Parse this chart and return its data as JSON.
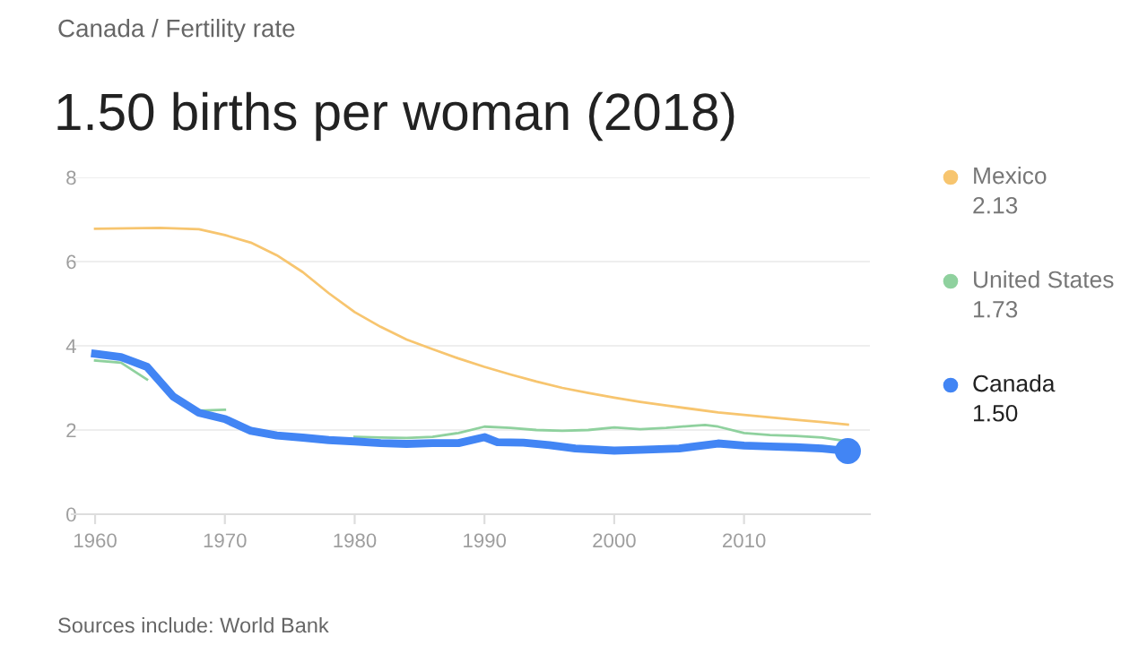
{
  "chart_data": {
    "type": "line",
    "subtitle": "Canada / Fertility rate",
    "title": "1.50 births per woman (2018)",
    "annotations": [
      "Sources include: World Bank"
    ],
    "xlim": [
      1958.2,
      2019.7
    ],
    "xticks": [
      1960,
      1970,
      1980,
      1990,
      2000,
      2010
    ],
    "ylim": [
      0,
      8
    ],
    "yticks": [
      0,
      2,
      4,
      6,
      8
    ],
    "grid": "y",
    "legend": "right",
    "series": [
      {
        "name": "Mexico\n2.13",
        "color": "#f7c56f",
        "x": [
          1960,
          1965,
          1968,
          1970,
          1972,
          1974,
          1976,
          1978,
          1980,
          1982,
          1984,
          1986,
          1988,
          1990,
          1992,
          1994,
          1996,
          1998,
          2000,
          2002,
          2004,
          2006,
          2008,
          2010,
          2012,
          2014,
          2016,
          2018
        ],
        "values": [
          6.78,
          6.8,
          6.77,
          6.63,
          6.45,
          6.15,
          5.75,
          5.25,
          4.8,
          4.45,
          4.15,
          3.92,
          3.7,
          3.5,
          3.32,
          3.15,
          3.0,
          2.88,
          2.77,
          2.67,
          2.58,
          2.5,
          2.42,
          2.36,
          2.3,
          2.24,
          2.19,
          2.13
        ]
      },
      {
        "name": "United States\n1.73",
        "color": "#8fd19e",
        "x": [
          1960,
          1962,
          1964,
          1966,
          1968,
          1970,
          1972,
          1974,
          1976,
          1978,
          1980,
          1982,
          1984,
          1986,
          1988,
          1990,
          1992,
          1994,
          1996,
          1998,
          2000,
          2002,
          2004,
          2006,
          2007,
          2008,
          2010,
          2012,
          2014,
          2016,
          2018
        ],
        "values": [
          3.65,
          3.6,
          3.2,
          null,
          2.46,
          2.48,
          null,
          null,
          null,
          null,
          1.84,
          1.82,
          1.81,
          1.84,
          1.93,
          2.08,
          2.05,
          2.0,
          1.98,
          2.0,
          2.06,
          2.02,
          2.05,
          2.1,
          2.12,
          2.08,
          1.93,
          1.88,
          1.86,
          1.82,
          1.73
        ]
      },
      {
        "name": "Canada\n1.50",
        "color": "#4285f4",
        "x": [
          1960,
          1962,
          1964,
          1966,
          1968,
          1970,
          1972,
          1974,
          1976,
          1978,
          1980,
          1982,
          1984,
          1986,
          1988,
          1990,
          1991,
          1993,
          1995,
          1997,
          2000,
          2002,
          2005,
          2008,
          2010,
          2012,
          2014,
          2016,
          2018
        ],
        "values": [
          3.81,
          3.73,
          3.5,
          2.8,
          2.41,
          2.26,
          1.98,
          1.87,
          1.82,
          1.76,
          1.73,
          1.69,
          1.67,
          1.69,
          1.69,
          1.83,
          1.71,
          1.7,
          1.64,
          1.56,
          1.51,
          1.53,
          1.56,
          1.68,
          1.63,
          1.61,
          1.59,
          1.56,
          1.5
        ]
      },
      {
        "type": "scatter",
        "color": "#4285f4",
        "marker": "circle",
        "x": [
          2018
        ],
        "values": [
          1.5
        ]
      }
    ]
  }
}
